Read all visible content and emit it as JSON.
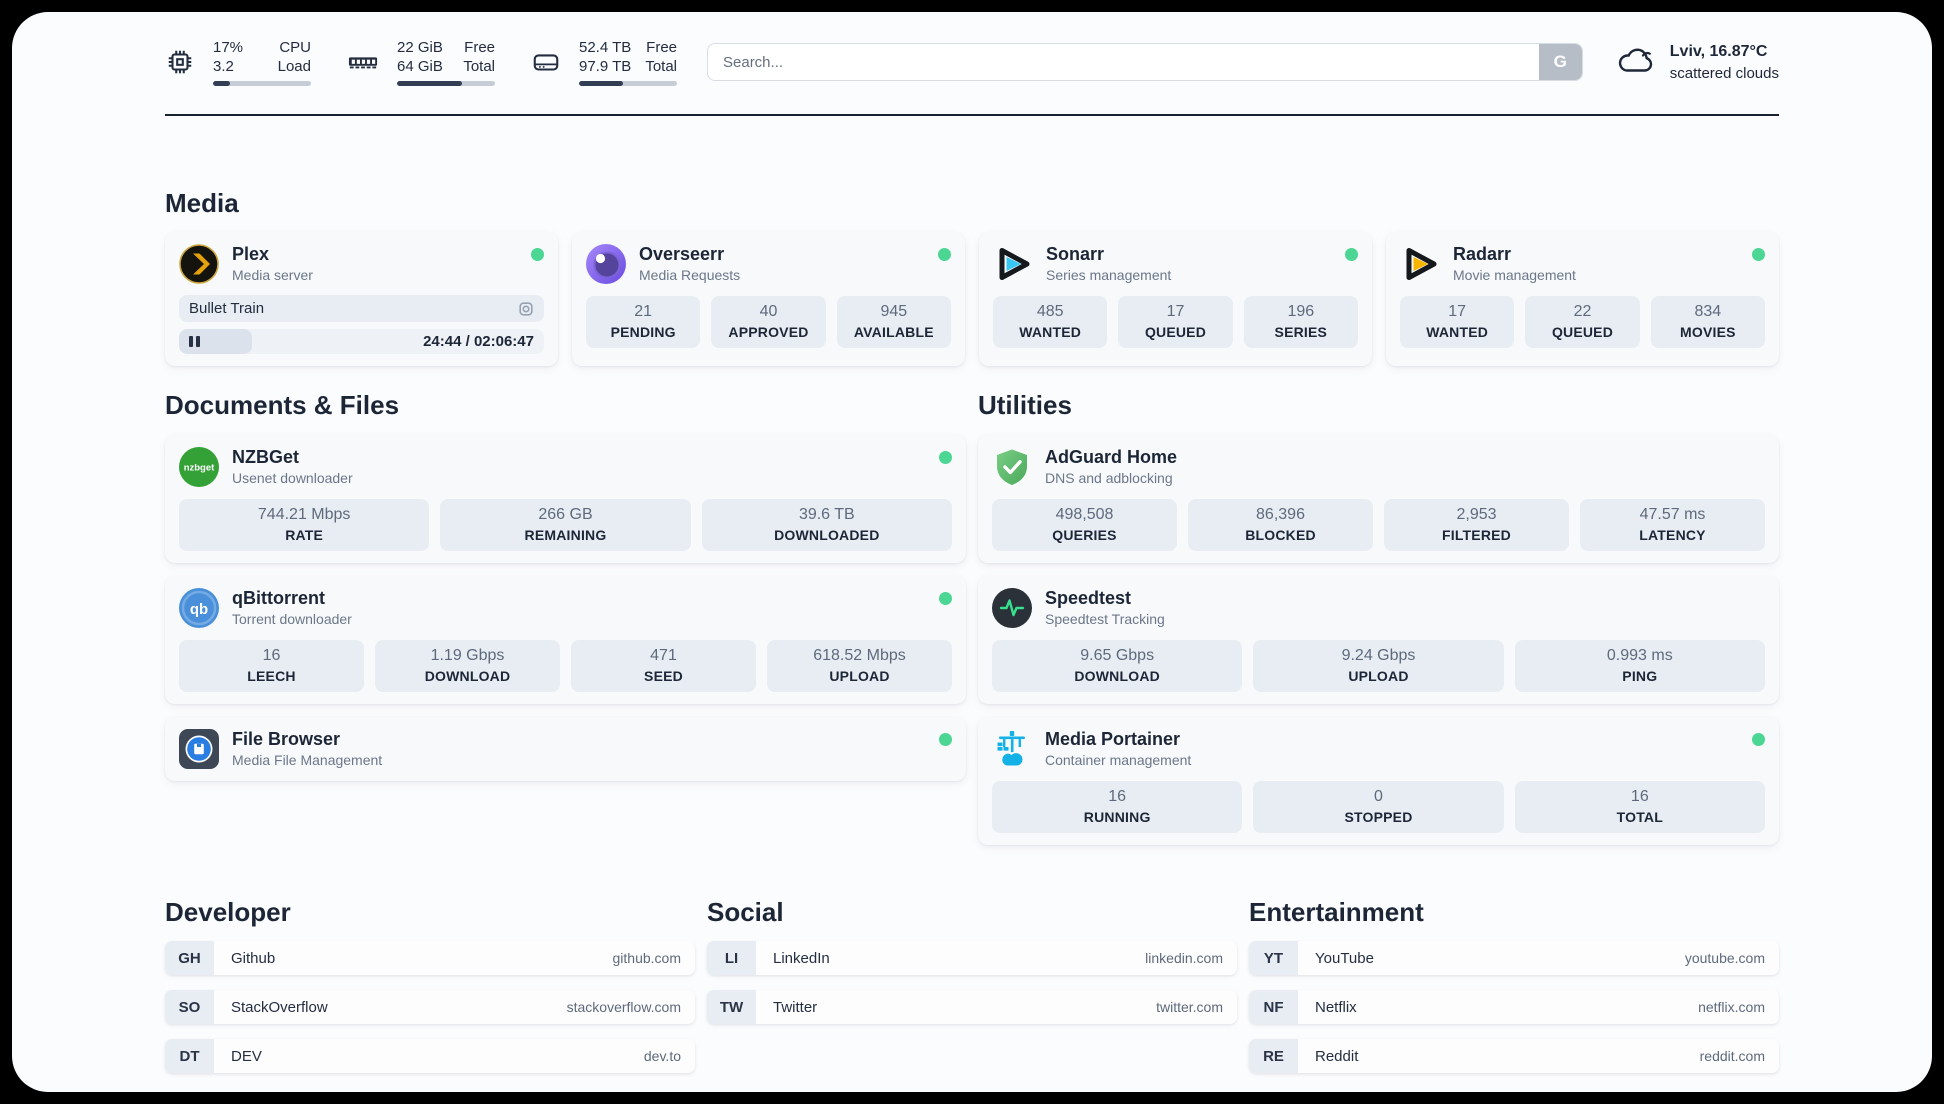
{
  "colors": {
    "status_online": "#4cd693",
    "text_dark": "#1c2636",
    "progress_fill": "#323e53",
    "portainer_blue": "#14b1e6",
    "plex_amber": "#e5a00d",
    "sonarr_cyan": "#38c6f4",
    "radarr_amber": "#f7b500"
  },
  "header": {
    "system_stats": [
      {
        "icon": "cpu-icon",
        "rows": [
          [
            "17%",
            "CPU"
          ],
          [
            "3.2",
            "Load"
          ]
        ],
        "progress_pct": 17
      },
      {
        "icon": "ram-icon",
        "rows": [
          [
            "22 GiB",
            "Free"
          ],
          [
            "64 GiB",
            "Total"
          ]
        ],
        "progress_pct": 66
      },
      {
        "icon": "disk-icon",
        "rows": [
          [
            "52.4 TB",
            "Free"
          ],
          [
            "97.9 TB",
            "Total"
          ]
        ],
        "progress_pct": 45
      }
    ],
    "search": {
      "placeholder": "Search...",
      "button_label": "G"
    },
    "weather": {
      "summary": "Lviv, 16.87°C",
      "condition": "scattered clouds"
    }
  },
  "sections": {
    "media": {
      "title": "Media"
    },
    "documents": {
      "title": "Documents & Files"
    },
    "utilities": {
      "title": "Utilities"
    },
    "developer": {
      "title": "Developer"
    },
    "social": {
      "title": "Social"
    },
    "entertainment": {
      "title": "Entertainment"
    }
  },
  "apps": {
    "plex": {
      "name": "Plex",
      "subtitle": "Media server",
      "online": true,
      "now_playing": "Bullet Train",
      "elapsed_total": "24:44 / 02:06:47",
      "progress_pct": 20
    },
    "overseerr": {
      "name": "Overseerr",
      "subtitle": "Media Requests",
      "online": true,
      "stats": [
        {
          "value": "21",
          "label": "PENDING"
        },
        {
          "value": "40",
          "label": "APPROVED"
        },
        {
          "value": "945",
          "label": "AVAILABLE"
        }
      ]
    },
    "sonarr": {
      "name": "Sonarr",
      "subtitle": "Series management",
      "online": true,
      "stats": [
        {
          "value": "485",
          "label": "WANTED"
        },
        {
          "value": "17",
          "label": "QUEUED"
        },
        {
          "value": "196",
          "label": "SERIES"
        }
      ]
    },
    "radarr": {
      "name": "Radarr",
      "subtitle": "Movie management",
      "online": true,
      "stats": [
        {
          "value": "17",
          "label": "WANTED"
        },
        {
          "value": "22",
          "label": "QUEUED"
        },
        {
          "value": "834",
          "label": "MOVIES"
        }
      ]
    },
    "nzbget": {
      "name": "NZBGet",
      "subtitle": "Usenet downloader",
      "online": true,
      "stats": [
        {
          "value": "744.21 Mbps",
          "label": "RATE"
        },
        {
          "value": "266 GB",
          "label": "REMAINING"
        },
        {
          "value": "39.6 TB",
          "label": "DOWNLOADED"
        }
      ]
    },
    "qbittorrent": {
      "name": "qBittorrent",
      "subtitle": "Torrent downloader",
      "online": true,
      "stats": [
        {
          "value": "16",
          "label": "LEECH"
        },
        {
          "value": "1.19 Gbps",
          "label": "DOWNLOAD"
        },
        {
          "value": "471",
          "label": "SEED"
        },
        {
          "value": "618.52 Mbps",
          "label": "UPLOAD"
        }
      ]
    },
    "filebrowser": {
      "name": "File Browser",
      "subtitle": "Media File Management",
      "online": true
    },
    "adguard": {
      "name": "AdGuard Home",
      "subtitle": "DNS and adblocking",
      "stats": [
        {
          "value": "498,508",
          "label": "QUERIES"
        },
        {
          "value": "86,396",
          "label": "BLOCKED"
        },
        {
          "value": "2,953",
          "label": "FILTERED"
        },
        {
          "value": "47.57 ms",
          "label": "LATENCY"
        }
      ]
    },
    "speedtest": {
      "name": "Speedtest",
      "subtitle": "Speedtest Tracking",
      "stats": [
        {
          "value": "9.65 Gbps",
          "label": "DOWNLOAD"
        },
        {
          "value": "9.24 Gbps",
          "label": "UPLOAD"
        },
        {
          "value": "0.993 ms",
          "label": "PING"
        }
      ]
    },
    "portainer": {
      "name": "Media Portainer",
      "subtitle": "Container management",
      "online": true,
      "stats": [
        {
          "value": "16",
          "label": "RUNNING"
        },
        {
          "value": "0",
          "label": "STOPPED"
        },
        {
          "value": "16",
          "label": "TOTAL"
        }
      ]
    }
  },
  "bookmarks": {
    "developer": [
      {
        "abbr": "GH",
        "name": "Github",
        "url": "github.com"
      },
      {
        "abbr": "SO",
        "name": "StackOverflow",
        "url": "stackoverflow.com"
      },
      {
        "abbr": "DT",
        "name": "DEV",
        "url": "dev.to"
      }
    ],
    "social": [
      {
        "abbr": "LI",
        "name": "LinkedIn",
        "url": "linkedin.com"
      },
      {
        "abbr": "TW",
        "name": "Twitter",
        "url": "twitter.com"
      }
    ],
    "entertainment": [
      {
        "abbr": "YT",
        "name": "YouTube",
        "url": "youtube.com"
      },
      {
        "abbr": "NF",
        "name": "Netflix",
        "url": "netflix.com"
      },
      {
        "abbr": "RE",
        "name": "Reddit",
        "url": "reddit.com"
      }
    ]
  }
}
